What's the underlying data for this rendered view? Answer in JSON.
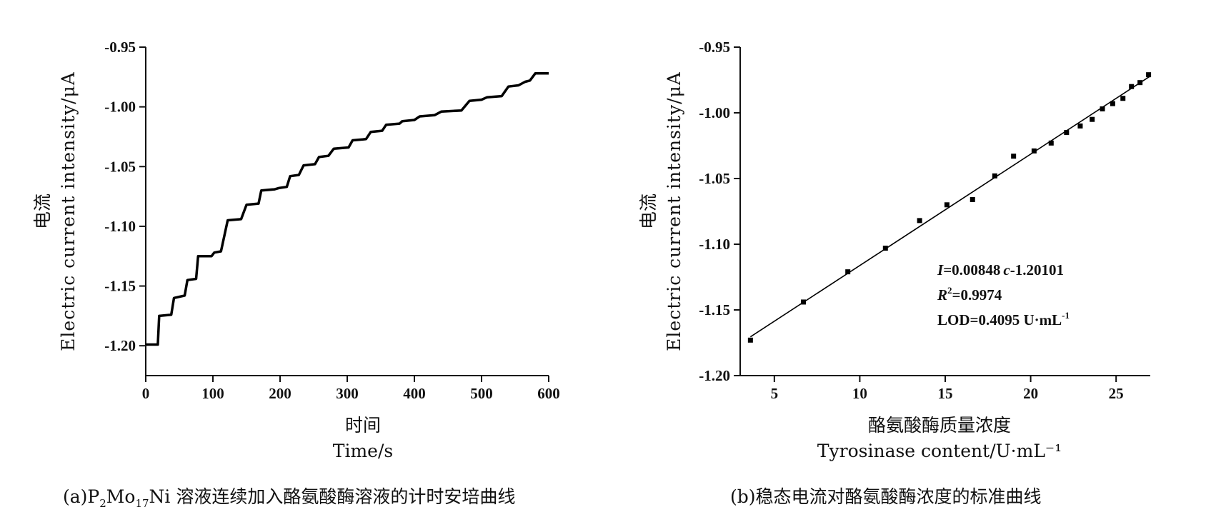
{
  "chart_data": [
    {
      "type": "line",
      "panel": "a",
      "xlabel_cn": "时间",
      "xlabel": "Time/s",
      "ylabel_cn": "电流",
      "ylabel": "Electric current intensity/μA",
      "xlim": [
        0,
        600
      ],
      "ylim": [
        -1.225,
        -0.95
      ],
      "x_ticks": [
        0,
        100,
        200,
        300,
        400,
        500,
        600
      ],
      "x_tick_labels": [
        "0",
        "100",
        "200",
        "300",
        "400",
        "500",
        "600"
      ],
      "y_ticks": [
        -0.95,
        -1.0,
        -1.05,
        -1.1,
        -1.15,
        -1.2
      ],
      "y_tick_labels": [
        "-0.95",
        "-1.00",
        "-1.05",
        "-1.10",
        "-1.15",
        "-1.20"
      ],
      "series": [
        {
          "x": [
            0,
            18,
            20,
            38,
            42,
            58,
            62,
            75,
            78,
            98,
            102,
            112,
            122,
            142,
            150,
            168,
            172,
            192,
            198,
            210,
            215,
            228,
            235,
            252,
            258,
            272,
            280,
            302,
            308,
            328,
            335,
            352,
            358,
            378,
            382,
            400,
            408,
            430,
            440,
            470,
            482,
            500,
            508,
            530,
            540,
            555,
            565,
            572,
            580,
            600
          ],
          "y": [
            -1.199,
            -1.199,
            -1.175,
            -1.174,
            -1.16,
            -1.158,
            -1.145,
            -1.144,
            -1.125,
            -1.125,
            -1.122,
            -1.121,
            -1.095,
            -1.094,
            -1.082,
            -1.081,
            -1.07,
            -1.069,
            -1.068,
            -1.067,
            -1.058,
            -1.057,
            -1.049,
            -1.048,
            -1.042,
            -1.041,
            -1.035,
            -1.034,
            -1.028,
            -1.027,
            -1.021,
            -1.02,
            -1.015,
            -1.014,
            -1.012,
            -1.011,
            -1.008,
            -1.007,
            -1.004,
            -1.003,
            -0.995,
            -0.994,
            -0.992,
            -0.991,
            -0.983,
            -0.982,
            -0.979,
            -0.978,
            -0.972,
            -0.972
          ]
        }
      ]
    },
    {
      "type": "scatter",
      "panel": "b",
      "xlabel_cn": "酪氨酸酶质量浓度",
      "xlabel": "Tyrosinase content/U·mL⁻¹",
      "ylabel_cn": "电流",
      "ylabel": "Electric current intensity/μA",
      "xlim": [
        3,
        27
      ],
      "ylim": [
        -1.2,
        -0.95
      ],
      "x_ticks": [
        5,
        10,
        15,
        20,
        25
      ],
      "x_tick_labels": [
        "5",
        "10",
        "15",
        "20",
        "25"
      ],
      "y_ticks": [
        -0.95,
        -1.0,
        -1.05,
        -1.1,
        -1.15,
        -1.2
      ],
      "y_tick_labels": [
        "-0.95",
        "-1.00",
        "-1.05",
        "-1.10",
        "-1.15",
        "-1.20"
      ],
      "series": [
        {
          "x": [
            3.6,
            6.7,
            9.3,
            11.5,
            13.5,
            15.1,
            16.6,
            17.9,
            19.0,
            20.2,
            21.2,
            22.1,
            22.9,
            23.6,
            24.2,
            24.8,
            25.4,
            25.9,
            26.4,
            26.9
          ],
          "y": [
            -1.173,
            -1.144,
            -1.121,
            -1.103,
            -1.082,
            -1.07,
            -1.066,
            -1.048,
            -1.033,
            -1.029,
            -1.023,
            -1.015,
            -1.01,
            -1.005,
            -0.997,
            -0.993,
            -0.989,
            -0.98,
            -0.977,
            -0.971
          ]
        }
      ],
      "fit": {
        "slope": 0.00848,
        "intercept": -1.20101,
        "x_range": [
          3.6,
          27.0
        ]
      },
      "annotations": {
        "equation_prefix": "I",
        "equation_body": "=0.00848",
        "equation_var": "c",
        "equation_tail": "-1.20101",
        "r2_prefix": "R",
        "r2_sup": "2",
        "r2_body": "=0.9974",
        "lod_body": "LOD=0.4095 U·mL",
        "lod_sup": "-1"
      }
    }
  ],
  "captions": {
    "a_prefix": "(a)P",
    "a_sub1": "2",
    "a_mid": "Mo",
    "a_sub2": "17",
    "a_rest": "Ni 溶液连续加入酪氨酸酶溶液的计时安培曲线",
    "b": "(b)稳态电流对酪氨酸酶浓度的标准曲线"
  }
}
